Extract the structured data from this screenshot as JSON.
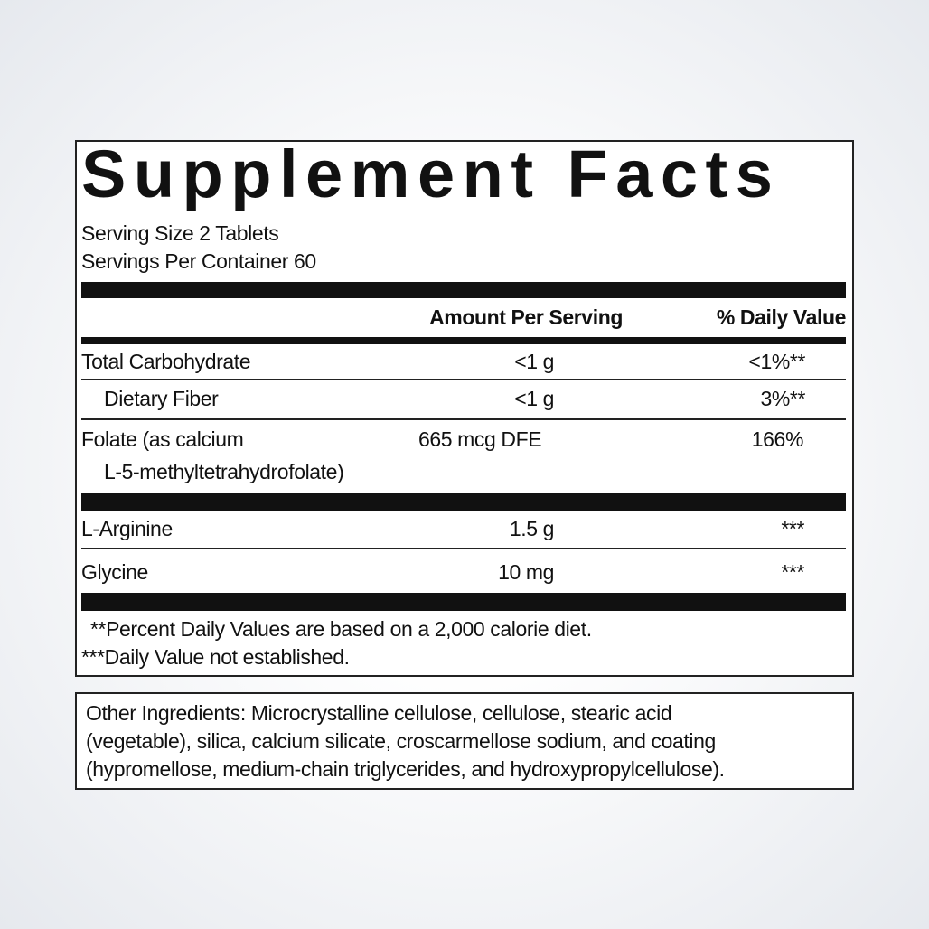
{
  "title": "Supplement Facts",
  "serving_size": "Serving Size 2 Tablets",
  "servings_per_container": "Servings Per Container 60",
  "header": {
    "amount": "Amount Per Serving",
    "daily_value": "% Daily Value"
  },
  "rows": [
    {
      "name": "Total Carbohydrate",
      "amount": "<1 g",
      "daily_value": "<1%**"
    },
    {
      "name": "Dietary Fiber",
      "amount": "<1 g",
      "daily_value": "3%**"
    },
    {
      "name": "Folate (as calcium",
      "name_cont": "L-5-methyltetrahydrofolate)",
      "amount": "665 mcg DFE",
      "daily_value": "166%"
    },
    {
      "name": "L-Arginine",
      "amount": "1.5 g",
      "daily_value": "***"
    },
    {
      "name": "Glycine",
      "amount": "10 mg",
      "daily_value": "***"
    }
  ],
  "footnotes": [
    "**Percent Daily Values are based on a 2,000 calorie diet.",
    "***Daily Value not established."
  ],
  "other_ingredients": [
    "Other Ingredients: Microcrystalline cellulose, cellulose, stearic acid",
    "(vegetable), silica, calcium silicate, croscarmellose sodium, and coating",
    "(hypromellose, medium-chain triglycerides, and hydroxypropylcellulose)."
  ]
}
